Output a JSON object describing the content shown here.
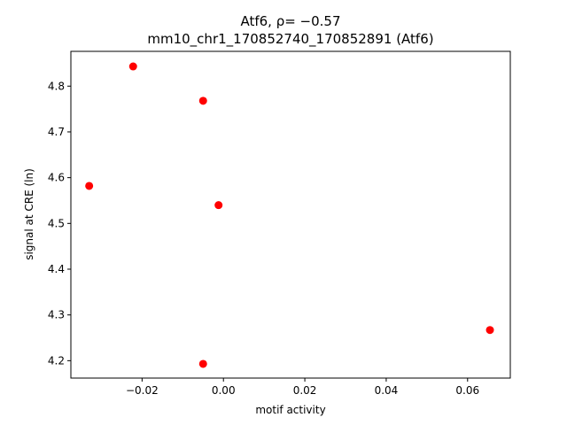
{
  "chart_data": {
    "type": "scatter",
    "title_line1": "Atf6, ρ= −0.57",
    "title_line2": "mm10_chr1_170852740_170852891 (Atf6)",
    "xlabel": "motif activity",
    "ylabel": "signal at CRE (ln)",
    "xlim": [
      -0.0375,
      0.0705
    ],
    "ylim": [
      4.162,
      4.876
    ],
    "xticks": [
      -0.02,
      0.0,
      0.02,
      0.04,
      0.06
    ],
    "xtick_labels": [
      "−0.02",
      "0.00",
      "0.02",
      "0.04",
      "0.06"
    ],
    "yticks": [
      4.2,
      4.3,
      4.4,
      4.5,
      4.6,
      4.7,
      4.8
    ],
    "ytick_labels": [
      "4.2",
      "4.3",
      "4.4",
      "4.5",
      "4.6",
      "4.7",
      "4.8"
    ],
    "marker_color": "#ff0000",
    "grid": false,
    "points": [
      {
        "x": -0.033,
        "y": 4.582
      },
      {
        "x": -0.0222,
        "y": 4.843
      },
      {
        "x": -0.005,
        "y": 4.768
      },
      {
        "x": -0.0012,
        "y": 4.54
      },
      {
        "x": -0.005,
        "y": 4.193
      },
      {
        "x": 0.0655,
        "y": 4.267
      }
    ]
  }
}
